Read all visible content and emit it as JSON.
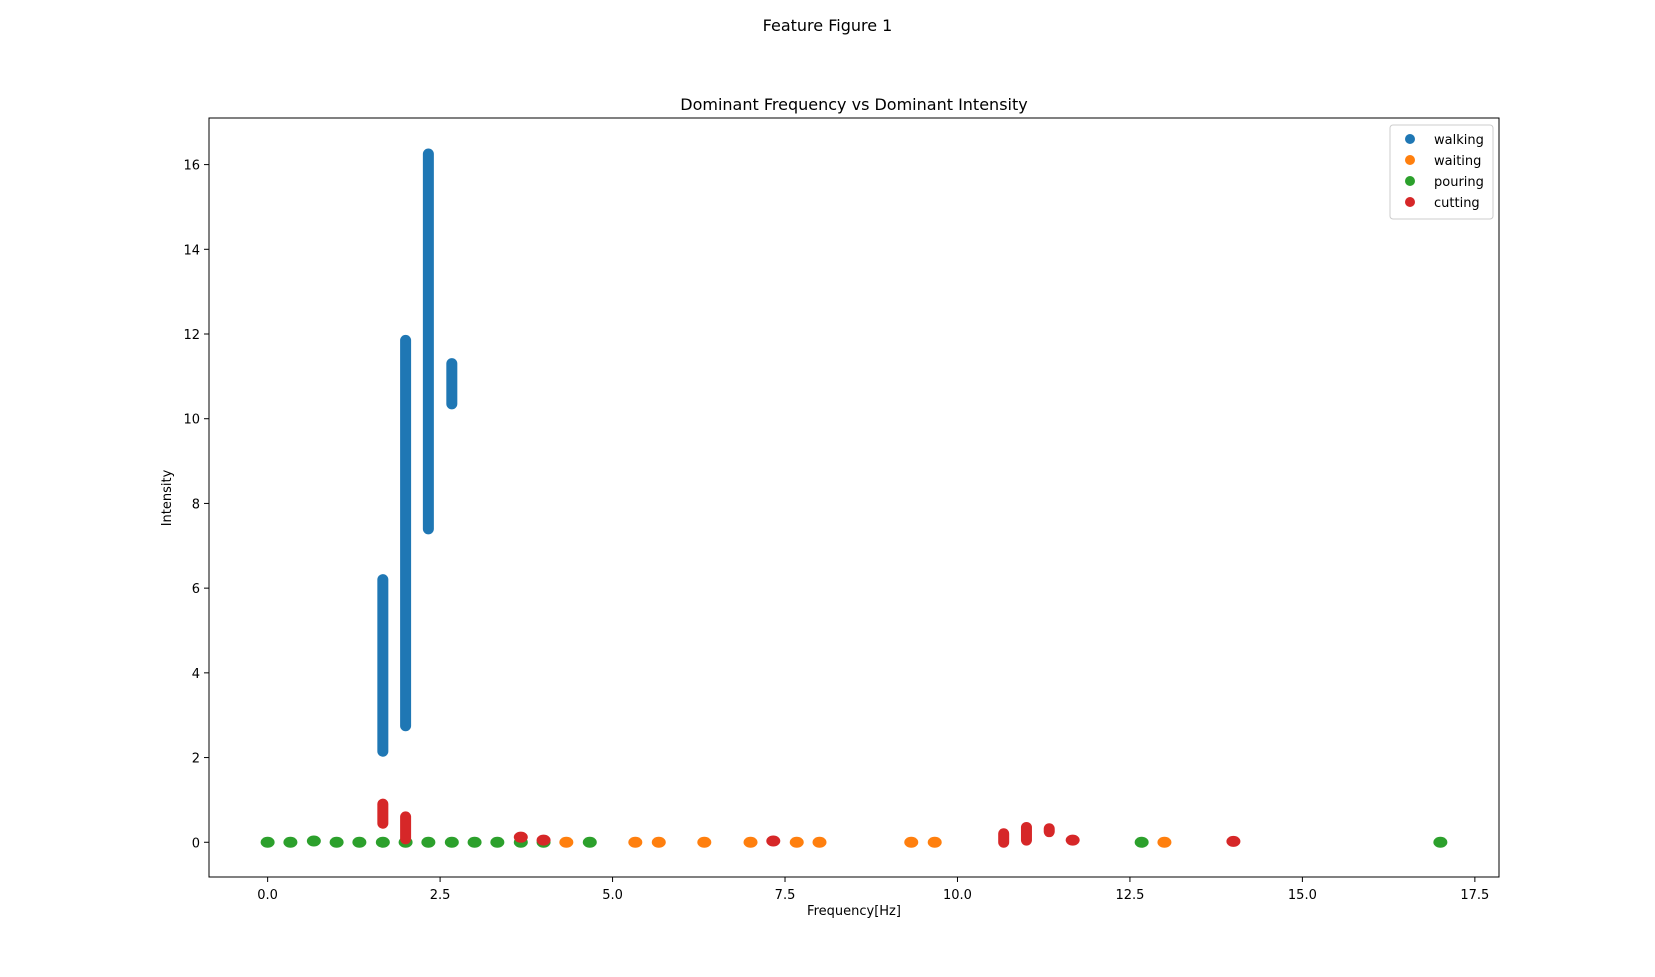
{
  "figure": {
    "suptitle": "Feature Figure 1"
  },
  "chart_data": {
    "type": "scatter",
    "title": "Dominant Frequency vs Dominant Intensity",
    "xlabel": "Frequency[Hz]",
    "ylabel": "Intensity",
    "xlim": [
      -0.85,
      17.85
    ],
    "ylim": [
      -0.82,
      17.1
    ],
    "xticks": [
      0.0,
      2.5,
      5.0,
      7.5,
      10.0,
      12.5,
      15.0,
      17.5
    ],
    "xtick_labels": [
      "0.0",
      "2.5",
      "5.0",
      "7.5",
      "10.0",
      "12.5",
      "15.0",
      "17.5"
    ],
    "yticks": [
      0,
      2,
      4,
      6,
      8,
      10,
      12,
      14,
      16
    ],
    "ytick_labels": [
      "0",
      "2",
      "4",
      "6",
      "8",
      "10",
      "12",
      "14",
      "16"
    ],
    "grid": false,
    "legend_position": "top-right",
    "series": [
      {
        "name": "walking",
        "color": "#1f77b4",
        "points": [],
        "vertical_ranges": [
          {
            "x": 1.67,
            "y_min": 2.15,
            "y_max": 6.2
          },
          {
            "x": 2.0,
            "y_min": 2.75,
            "y_max": 11.85
          },
          {
            "x": 2.33,
            "y_min": 7.4,
            "y_max": 16.25
          },
          {
            "x": 2.67,
            "y_min": 10.35,
            "y_max": 11.3
          }
        ]
      },
      {
        "name": "waiting",
        "color": "#ff7f0e",
        "points": [
          [
            4.33,
            0.0
          ],
          [
            5.33,
            0.0
          ],
          [
            5.67,
            0.0
          ],
          [
            6.33,
            0.0
          ],
          [
            7.0,
            0.0
          ],
          [
            7.67,
            0.0
          ],
          [
            8.0,
            0.0
          ],
          [
            9.33,
            0.0
          ],
          [
            9.67,
            0.0
          ],
          [
            13.0,
            0.0
          ]
        ],
        "vertical_ranges": []
      },
      {
        "name": "pouring",
        "color": "#2ca02c",
        "points": [
          [
            0.0,
            0.0
          ],
          [
            0.33,
            0.0
          ],
          [
            0.67,
            0.03
          ],
          [
            1.0,
            0.0
          ],
          [
            1.33,
            0.0
          ],
          [
            1.67,
            0.0
          ],
          [
            2.0,
            0.0
          ],
          [
            2.33,
            0.0
          ],
          [
            2.67,
            0.0
          ],
          [
            3.0,
            0.0
          ],
          [
            3.33,
            0.0
          ],
          [
            3.67,
            0.0
          ],
          [
            4.0,
            0.0
          ],
          [
            4.67,
            0.0
          ],
          [
            12.67,
            0.0
          ],
          [
            17.0,
            0.0
          ]
        ],
        "vertical_ranges": []
      },
      {
        "name": "cutting",
        "color": "#d62728",
        "points": [
          [
            3.67,
            0.12
          ],
          [
            4.0,
            0.05
          ],
          [
            7.33,
            0.03
          ],
          [
            11.67,
            0.05
          ],
          [
            14.0,
            0.02
          ]
        ],
        "vertical_ranges": [
          {
            "x": 1.67,
            "y_min": 0.45,
            "y_max": 0.9
          },
          {
            "x": 2.0,
            "y_min": 0.08,
            "y_max": 0.6
          },
          {
            "x": 10.67,
            "y_min": 0.0,
            "y_max": 0.2
          },
          {
            "x": 11.0,
            "y_min": 0.05,
            "y_max": 0.35
          },
          {
            "x": 11.33,
            "y_min": 0.25,
            "y_max": 0.32
          }
        ]
      }
    ]
  }
}
